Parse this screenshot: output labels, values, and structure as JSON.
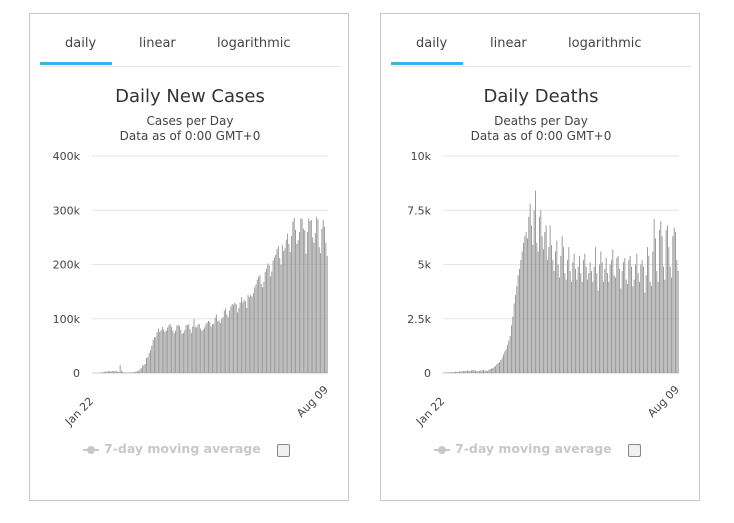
{
  "tabs": [
    "daily",
    "linear",
    "logarithmic"
  ],
  "legend_label": "7-day moving average",
  "colors": {
    "bar": "#999999",
    "accent": "#3bb3e6",
    "grid": "#e6e6e6"
  },
  "chart_data": [
    {
      "type": "bar",
      "title": "Daily New Cases",
      "subtitle": "Cases per Day",
      "subtitle2": "Data as of 0:00 GMT+0",
      "x_start": "Jan 22",
      "x_end": "Aug 09",
      "ylim": [
        0,
        400000
      ],
      "yticks": [
        0,
        100000,
        200000,
        300000,
        400000
      ],
      "ytick_labels": [
        "0",
        "100k",
        "200k",
        "300k",
        "400k"
      ],
      "grid": true,
      "values": [
        0,
        0,
        0,
        0,
        0,
        0,
        500,
        1000,
        1500,
        2000,
        2500,
        3000,
        3500,
        3000,
        3000,
        4000,
        3000,
        3500,
        4000,
        2500,
        2000,
        15000,
        4000,
        2000,
        1000,
        1000,
        1000,
        500,
        1000,
        1000,
        1500,
        1000,
        2000,
        2500,
        3500,
        4000,
        7000,
        9000,
        13000,
        15000,
        17000,
        28000,
        29000,
        37000,
        42000,
        50000,
        61000,
        66000,
        66000,
        75000,
        82000,
        76000,
        79000,
        85000,
        80000,
        76000,
        78000,
        84000,
        88000,
        90000,
        85000,
        78000,
        73000,
        78000,
        87000,
        89000,
        87000,
        80000,
        72000,
        74000,
        79000,
        88000,
        88000,
        90000,
        81000,
        74000,
        86000,
        99000,
        85000,
        84000,
        89000,
        90000,
        82000,
        78000,
        80000,
        84000,
        90000,
        93000,
        96000,
        94000,
        86000,
        90000,
        91000,
        102000,
        108000,
        95000,
        97000,
        92000,
        100000,
        103000,
        115000,
        119000,
        108000,
        103000,
        115000,
        123000,
        127000,
        126000,
        130000,
        127000,
        112000,
        120000,
        130000,
        140000,
        130000,
        135000,
        132000,
        120000,
        144000,
        140000,
        144000,
        141000,
        147000,
        158000,
        163000,
        172000,
        178000,
        180000,
        164000,
        158000,
        168000,
        186000,
        192000,
        202000,
        199000,
        178000,
        187000,
        207000,
        213000,
        218000,
        229000,
        234000,
        212000,
        200000,
        236000,
        225000,
        230000,
        246000,
        257000,
        238000,
        223000,
        253000,
        279000,
        286000,
        264000,
        238000,
        245000,
        260000,
        285000,
        284000,
        266000,
        263000,
        220000,
        260000,
        285000,
        280000,
        282000,
        250000,
        240000,
        258000,
        288000,
        283000,
        232000,
        221000,
        266000,
        282000,
        270000,
        240000,
        216000
      ]
    },
    {
      "type": "bar",
      "title": "Daily Deaths",
      "subtitle": "Deaths per Day",
      "subtitle2": "Data as of 0:00 GMT+0",
      "x_start": "Jan 22",
      "x_end": "Aug 09",
      "ylim": [
        0,
        10000
      ],
      "yticks": [
        0,
        2500,
        5000,
        7500,
        10000
      ],
      "ytick_labels": [
        "0",
        "2.5k",
        "5k",
        "7.5k",
        "10k"
      ],
      "grid": true,
      "values": [
        10,
        15,
        20,
        25,
        30,
        35,
        40,
        45,
        50,
        60,
        55,
        60,
        80,
        70,
        85,
        90,
        100,
        95,
        110,
        105,
        100,
        120,
        140,
        130,
        110,
        90,
        80,
        100,
        110,
        120,
        140,
        100,
        110,
        90,
        150,
        180,
        200,
        230,
        280,
        320,
        400,
        450,
        500,
        600,
        700,
        850,
        1000,
        1100,
        1300,
        1500,
        1700,
        2200,
        2600,
        3200,
        3600,
        4000,
        4500,
        4800,
        5200,
        5600,
        6000,
        6300,
        6500,
        6200,
        7200,
        7800,
        6800,
        5900,
        7500,
        8400,
        6000,
        5600,
        7200,
        7500,
        6300,
        5700,
        6500,
        6800,
        5200,
        5800,
        6800,
        5900,
        5200,
        4700,
        5600,
        6100,
        5000,
        4400,
        5400,
        6300,
        5800,
        4600,
        4300,
        5200,
        5800,
        4700,
        4200,
        5100,
        5500,
        4800,
        4300,
        4900,
        5400,
        4600,
        4200,
        5200,
        5500,
        4900,
        4300,
        4600,
        5100,
        4700,
        4200,
        4900,
        5800,
        4600,
        3800,
        5000,
        5600,
        5100,
        4200,
        4800,
        5300,
        4600,
        4200,
        5000,
        5200,
        5700,
        4500,
        4400,
        5300,
        5400,
        4800,
        3900,
        4700,
        5100,
        5300,
        4300,
        4100,
        5200,
        5400,
        4900,
        4000,
        4300,
        5000,
        5500,
        4600,
        4200,
        5000,
        5200,
        4900,
        3700,
        4500,
        5800,
        5400,
        4200,
        4000,
        5600,
        7100,
        6200,
        4700,
        4200,
        6600,
        7000,
        6300,
        4900,
        4300,
        6600,
        6800,
        5800,
        4900,
        4400,
        6300,
        6700,
        6500,
        5200,
        4700
      ]
    }
  ]
}
